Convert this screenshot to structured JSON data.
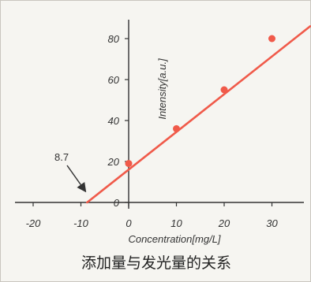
{
  "chart_data": {
    "type": "scatter",
    "xlabel": "Concentration[mg/L]",
    "ylabel": "Intensity[a.u.]",
    "xlim": [
      -20,
      35
    ],
    "ylim": [
      0,
      88
    ],
    "x_ticks": [
      -20,
      -10,
      0,
      10,
      20,
      30
    ],
    "y_ticks": [
      0,
      20,
      40,
      60,
      80
    ],
    "x_tick_labels": [
      "-20",
      "-10",
      "0",
      "10",
      "20",
      "30"
    ],
    "y_tick_labels": [
      "0",
      "20",
      "40",
      "60",
      "80"
    ],
    "points": [
      {
        "x": 0,
        "y": 19
      },
      {
        "x": 10,
        "y": 36
      },
      {
        "x": 20,
        "y": 55
      },
      {
        "x": 30,
        "y": 80
      }
    ],
    "fit_line": {
      "x": [
        -8.7,
        38
      ],
      "y": [
        0,
        86
      ]
    },
    "annotation": {
      "text": "8.7",
      "x": -8.7,
      "y": 0
    },
    "grid": false,
    "colors": {
      "series": "#f05a4a",
      "axis": "#333333",
      "text": "#333333"
    }
  },
  "caption": "添加量与发光量的关系"
}
